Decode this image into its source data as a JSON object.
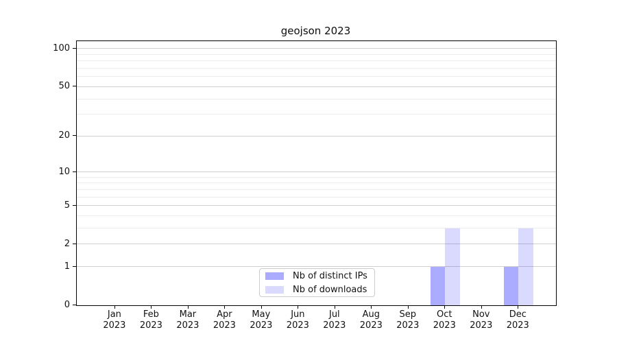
{
  "title": "geojson 2023",
  "chart_data": {
    "type": "bar",
    "title": "geojson 2023",
    "categories": [
      "Jan 2023",
      "Feb 2023",
      "Mar 2023",
      "Apr 2023",
      "May 2023",
      "Jun 2023",
      "Jul 2023",
      "Aug 2023",
      "Sep 2023",
      "Oct 2023",
      "Nov 2023",
      "Dec 2023"
    ],
    "x_tick_line1": [
      "Jan",
      "Feb",
      "Mar",
      "Apr",
      "May",
      "Jun",
      "Jul",
      "Aug",
      "Sep",
      "Oct",
      "Nov",
      "Dec"
    ],
    "x_tick_line2": [
      "2023",
      "2023",
      "2023",
      "2023",
      "2023",
      "2023",
      "2023",
      "2023",
      "2023",
      "2023",
      "2023",
      "2023"
    ],
    "series": [
      {
        "name": "Nb of distinct IPs",
        "color": "rgba(0,0,255,0.33)",
        "color_hex_on_white": "#aaaaff",
        "values": [
          0,
          0,
          0,
          0,
          0,
          0,
          0,
          0,
          0,
          1,
          0,
          1
        ]
      },
      {
        "name": "Nb of downloads",
        "color": "rgba(0,0,255,0.145)",
        "color_hex_on_white": "#dcdcff",
        "values": [
          0,
          0,
          0,
          0,
          0,
          0,
          0,
          0,
          0,
          3,
          0,
          3
        ]
      }
    ],
    "xlabel": "",
    "ylabel": "",
    "yscale": "log1p",
    "ylim": [
      0,
      115
    ],
    "y_major_ticks": [
      0,
      1,
      2,
      5,
      10,
      20,
      50,
      100
    ],
    "y_minor_gridlines": [
      3,
      4,
      6,
      7,
      8,
      9,
      30,
      40,
      60,
      70,
      80,
      90
    ],
    "grid": true,
    "legend_position": "lower center",
    "grid_major_color": "#cfcfcf",
    "grid_minor_color": "#ececec",
    "axis_color": "#000000"
  }
}
